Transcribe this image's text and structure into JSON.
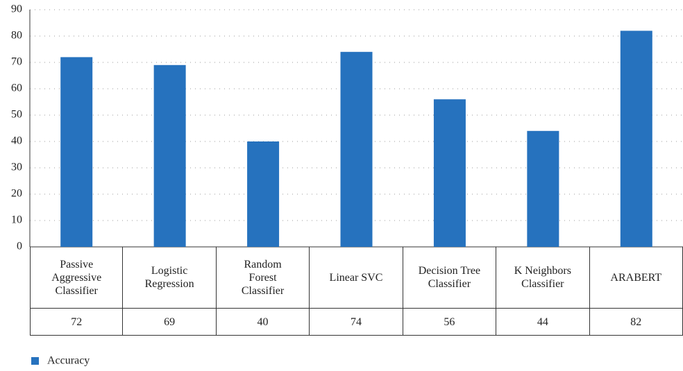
{
  "chart_data": {
    "type": "bar",
    "categories": [
      "Passive Aggressive Classifier",
      "Logistic Regression",
      "Random Forest Classifier",
      "Linear SVC",
      "Decision Tree Classifier",
      "K Neighbors Classifier",
      "ARABERT"
    ],
    "series": [
      {
        "name": "Accuracy",
        "color": "#2672be",
        "values": [
          72,
          69,
          40,
          74,
          56,
          44,
          82
        ]
      }
    ],
    "ylim": [
      0,
      90
    ],
    "yticks": [
      0,
      10,
      20,
      30,
      40,
      50,
      60,
      70,
      80,
      90
    ],
    "grid": true,
    "legend": "bottom-left"
  }
}
